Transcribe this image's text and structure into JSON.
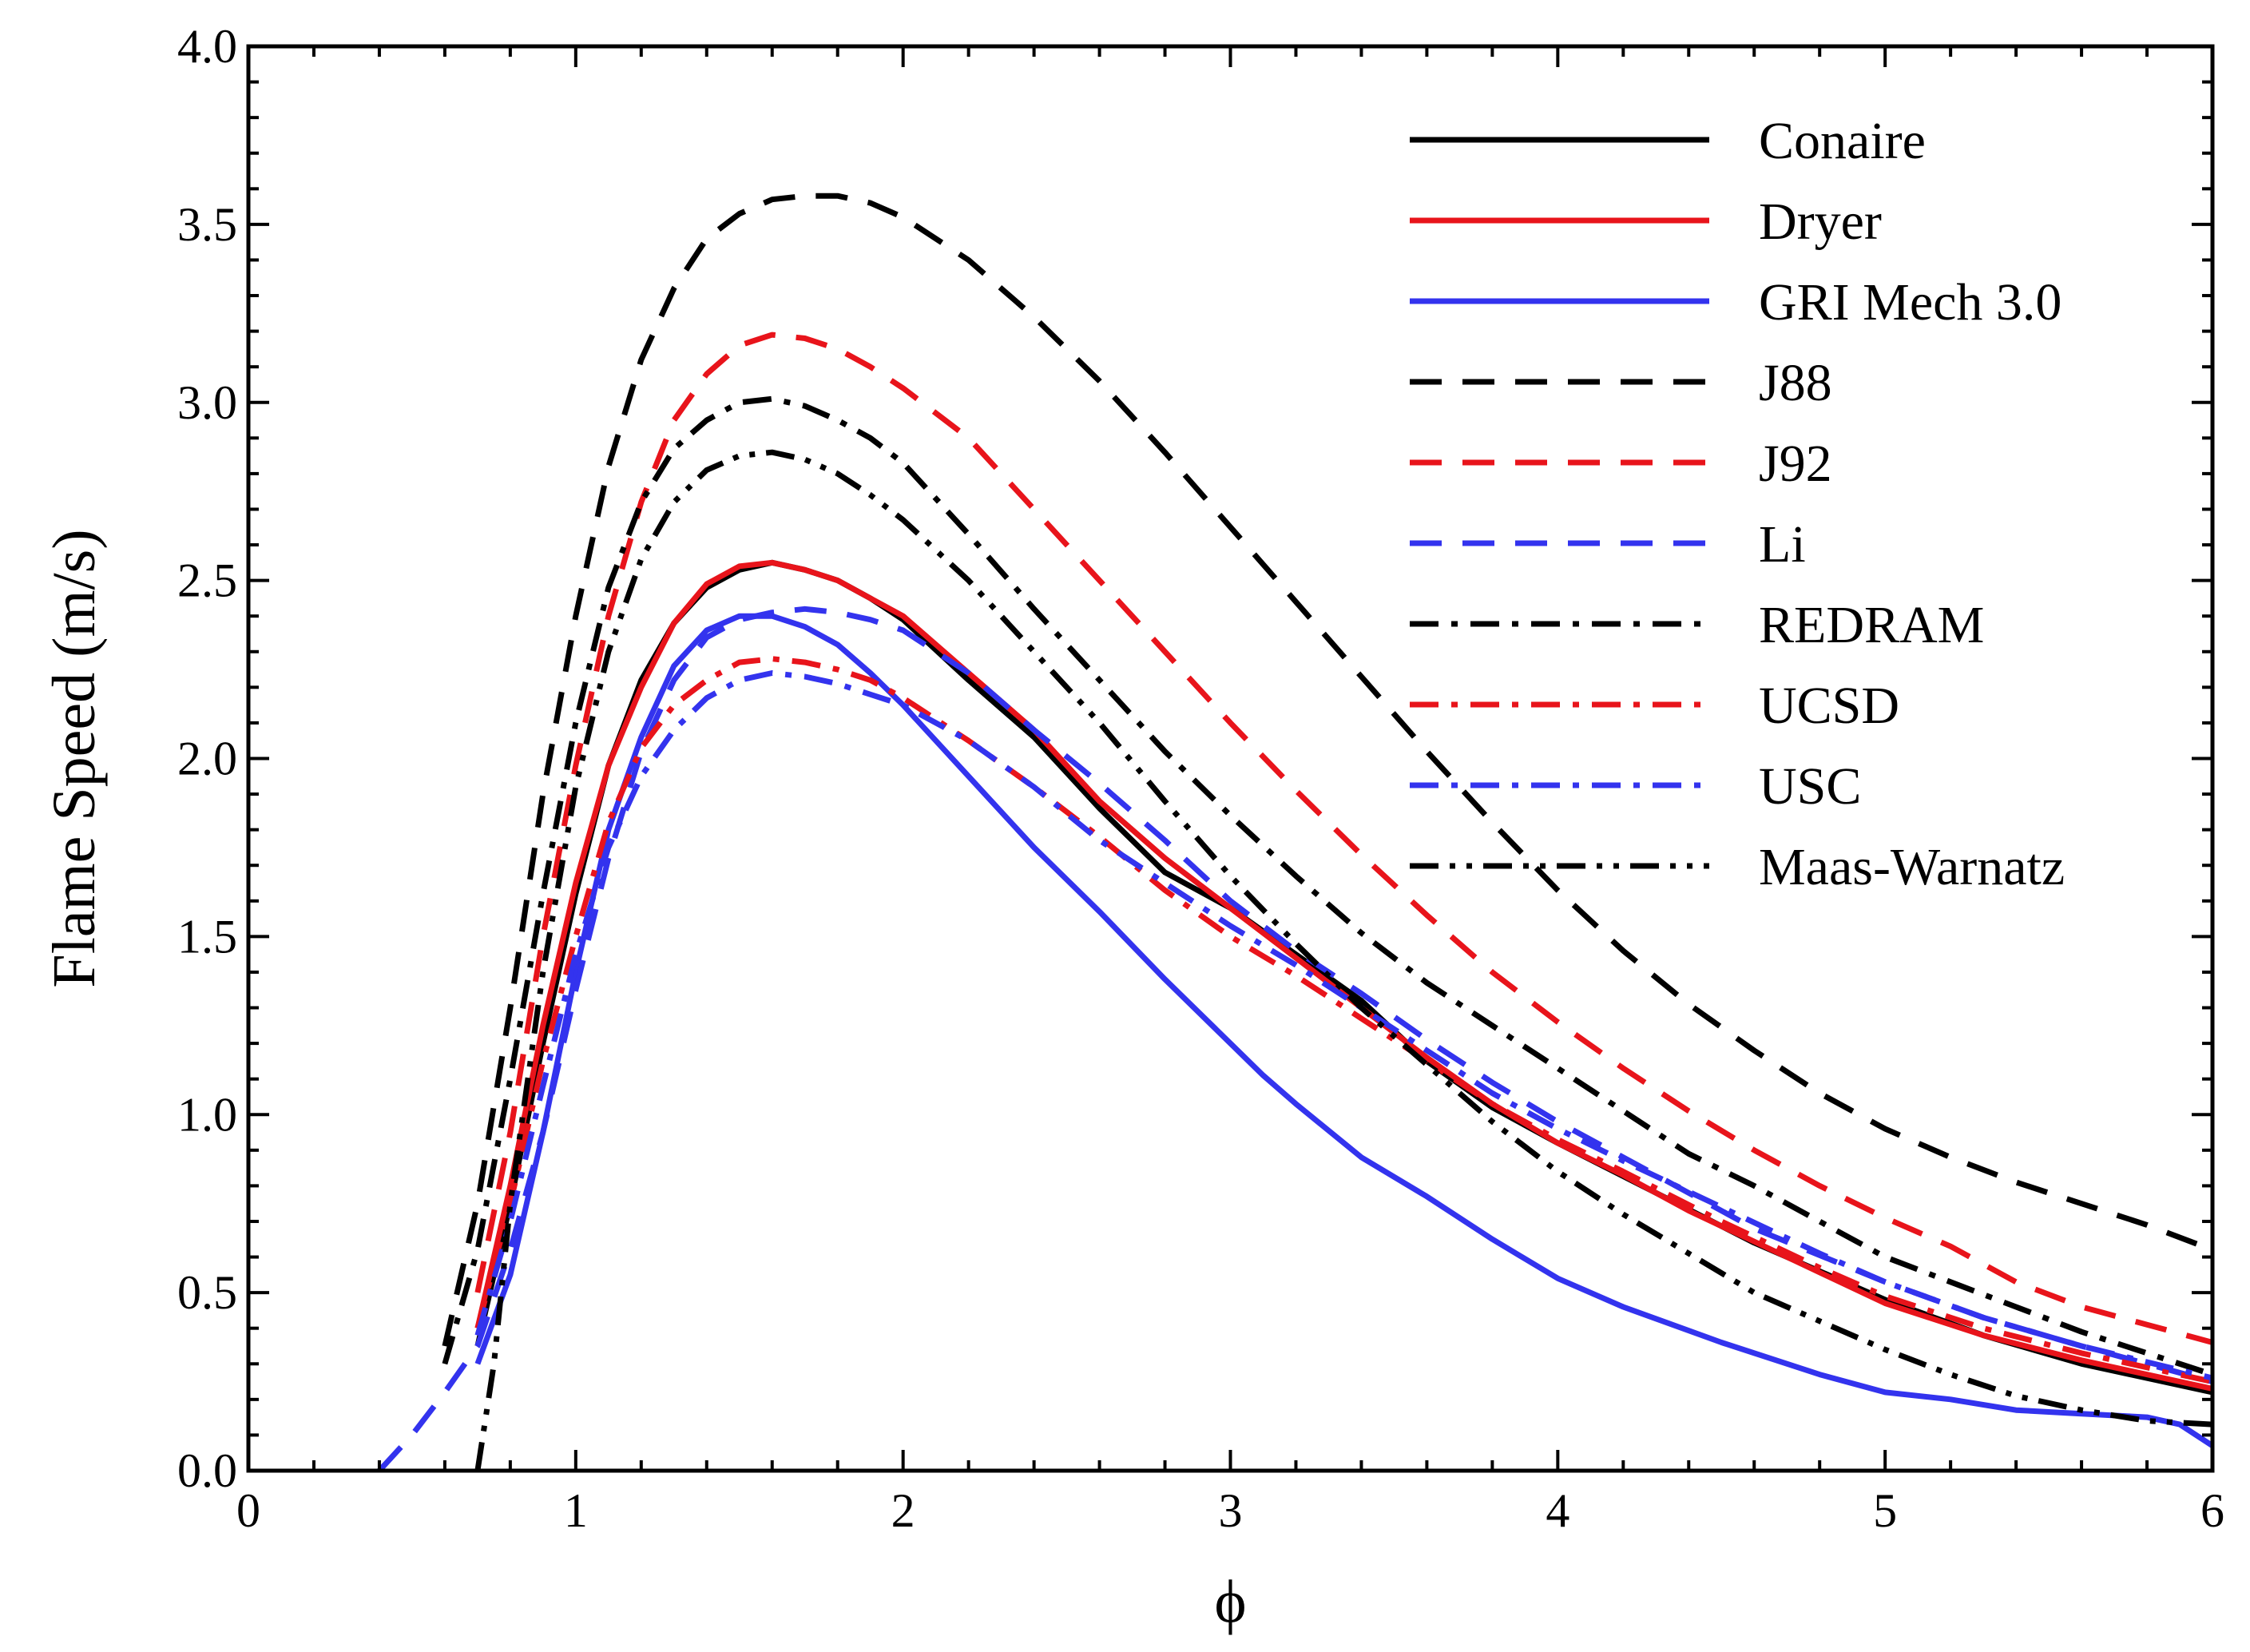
{
  "chart_data": {
    "type": "line",
    "title": "",
    "xlabel": "ϕ",
    "ylabel": "Flame Speed (m/s)",
    "xlim": [
      0,
      6
    ],
    "ylim": [
      0,
      4
    ],
    "x_ticks": [
      0,
      1,
      2,
      3,
      4,
      5,
      6
    ],
    "x_tick_labels": [
      "0",
      "1",
      "2",
      "3",
      "4",
      "5",
      "6"
    ],
    "y_ticks": [
      0,
      0.5,
      1,
      1.5,
      2,
      2.5,
      3,
      3.5,
      4
    ],
    "y_tick_labels": [
      "0.0",
      "0.5",
      "1.0",
      "1.5",
      "2.0",
      "2.5",
      "3.0",
      "3.5",
      "4.0"
    ],
    "grid": false,
    "legend_position": "top-right",
    "series": [
      {
        "name": "Conaire",
        "color": "#000000",
        "style": "solid",
        "x": [
          0.7,
          0.8,
          0.9,
          1.0,
          1.1,
          1.2,
          1.3,
          1.4,
          1.5,
          1.6,
          1.7,
          1.8,
          1.9,
          2.0,
          2.2,
          2.4,
          2.6,
          2.8,
          3.0,
          3.2,
          3.4,
          3.6,
          3.8,
          4.0,
          4.3,
          4.6,
          5.0,
          5.3,
          5.6,
          6.0
        ],
        "y": [
          0.35,
          0.75,
          1.2,
          1.62,
          1.98,
          2.22,
          2.38,
          2.48,
          2.53,
          2.55,
          2.53,
          2.5,
          2.45,
          2.39,
          2.22,
          2.06,
          1.86,
          1.68,
          1.58,
          1.45,
          1.32,
          1.15,
          1.02,
          0.92,
          0.78,
          0.64,
          0.48,
          0.38,
          0.3,
          0.22
        ]
      },
      {
        "name": "Dryer",
        "color": "#e8141b",
        "style": "solid",
        "x": [
          0.7,
          0.8,
          0.9,
          1.0,
          1.1,
          1.2,
          1.3,
          1.4,
          1.5,
          1.6,
          1.7,
          1.8,
          1.9,
          2.0,
          2.2,
          2.4,
          2.6,
          2.8,
          3.0,
          3.2,
          3.4,
          3.6,
          3.8,
          4.0,
          4.2,
          4.4,
          4.7,
          5.0,
          5.3,
          5.6,
          6.0
        ],
        "y": [
          0.4,
          0.8,
          1.25,
          1.65,
          1.98,
          2.2,
          2.38,
          2.49,
          2.54,
          2.55,
          2.53,
          2.5,
          2.45,
          2.4,
          2.24,
          2.08,
          1.88,
          1.72,
          1.58,
          1.44,
          1.3,
          1.16,
          1.03,
          0.92,
          0.83,
          0.73,
          0.6,
          0.47,
          0.38,
          0.31,
          0.23
        ]
      },
      {
        "name": "GRI Mech 3.0",
        "color": "#3333ee",
        "style": "solid",
        "x": [
          0.7,
          0.8,
          0.9,
          1.0,
          1.1,
          1.2,
          1.3,
          1.4,
          1.5,
          1.6,
          1.7,
          1.8,
          1.9,
          2.0,
          2.2,
          2.4,
          2.6,
          2.8,
          3.0,
          3.1,
          3.2,
          3.4,
          3.6,
          3.8,
          4.0,
          4.2,
          4.5,
          4.8,
          5.0,
          5.2,
          5.4,
          5.6,
          5.8,
          5.9,
          6.0
        ],
        "y": [
          0.3,
          0.55,
          0.95,
          1.4,
          1.8,
          2.06,
          2.26,
          2.36,
          2.4,
          2.4,
          2.37,
          2.32,
          2.24,
          2.15,
          1.95,
          1.75,
          1.57,
          1.38,
          1.2,
          1.11,
          1.03,
          0.88,
          0.77,
          0.65,
          0.54,
          0.46,
          0.36,
          0.27,
          0.22,
          0.2,
          0.17,
          0.16,
          0.15,
          0.13,
          0.07
        ]
      },
      {
        "name": "J88",
        "color": "#000000",
        "style": "dash",
        "x": [
          0.6,
          0.7,
          0.8,
          0.9,
          1.0,
          1.1,
          1.2,
          1.3,
          1.4,
          1.5,
          1.6,
          1.7,
          1.8,
          1.9,
          2.0,
          2.2,
          2.4,
          2.6,
          2.8,
          3.0,
          3.2,
          3.4,
          3.6,
          3.8,
          4.0,
          4.2,
          4.4,
          4.6,
          4.8,
          5.0,
          5.2,
          5.4,
          5.6,
          5.8,
          6.0
        ],
        "y": [
          0.35,
          0.75,
          1.3,
          1.9,
          2.4,
          2.82,
          3.12,
          3.32,
          3.46,
          3.53,
          3.57,
          3.58,
          3.58,
          3.56,
          3.52,
          3.4,
          3.24,
          3.06,
          2.86,
          2.65,
          2.44,
          2.23,
          2.02,
          1.82,
          1.63,
          1.46,
          1.31,
          1.18,
          1.06,
          0.96,
          0.88,
          0.81,
          0.75,
          0.69,
          0.62
        ]
      },
      {
        "name": "J92",
        "color": "#e8141b",
        "style": "dash",
        "x": [
          0.7,
          0.8,
          0.9,
          1.0,
          1.1,
          1.2,
          1.3,
          1.4,
          1.5,
          1.6,
          1.7,
          1.8,
          1.9,
          2.0,
          2.2,
          2.4,
          2.6,
          2.8,
          3.0,
          3.2,
          3.4,
          3.6,
          3.8,
          4.0,
          4.2,
          4.4,
          4.6,
          4.8,
          5.0,
          5.2,
          5.4,
          5.6,
          5.8,
          6.0
        ],
        "y": [
          0.5,
          0.95,
          1.5,
          1.98,
          2.4,
          2.72,
          2.95,
          3.08,
          3.16,
          3.19,
          3.18,
          3.15,
          3.1,
          3.04,
          2.9,
          2.7,
          2.5,
          2.3,
          2.1,
          1.91,
          1.73,
          1.56,
          1.4,
          1.26,
          1.13,
          1.01,
          0.9,
          0.8,
          0.71,
          0.63,
          0.53,
          0.46,
          0.41,
          0.36
        ]
      },
      {
        "name": "Li",
        "color": "#3333ee",
        "style": "dash",
        "x": [
          0.4,
          0.5,
          0.6,
          0.7,
          0.8,
          0.9,
          1.0,
          1.1,
          1.2,
          1.3,
          1.4,
          1.5,
          1.6,
          1.7,
          1.8,
          1.9,
          2.0,
          2.2,
          2.4,
          2.6,
          2.8,
          3.0,
          3.2,
          3.4,
          3.6,
          3.8,
          4.0,
          4.3,
          4.6,
          5.0,
          5.3,
          5.6,
          6.0
        ],
        "y": [
          0.0,
          0.1,
          0.22,
          0.35,
          0.62,
          0.95,
          1.35,
          1.72,
          2.02,
          2.22,
          2.34,
          2.39,
          2.41,
          2.42,
          2.41,
          2.39,
          2.36,
          2.24,
          2.08,
          1.93,
          1.77,
          1.6,
          1.46,
          1.34,
          1.21,
          1.09,
          0.98,
          0.83,
          0.68,
          0.53,
          0.43,
          0.35,
          0.25
        ]
      },
      {
        "name": "REDRAM",
        "color": "#000000",
        "style": "dashdot",
        "x": [
          0.6,
          0.7,
          0.8,
          0.9,
          1.0,
          1.1,
          1.2,
          1.3,
          1.4,
          1.5,
          1.6,
          1.7,
          1.8,
          1.9,
          2.0,
          2.2,
          2.4,
          2.6,
          2.8,
          3.0,
          3.2,
          3.4,
          3.6,
          3.8,
          4.0,
          4.2,
          4.4,
          4.6,
          4.8,
          5.0,
          5.2,
          5.4,
          5.6,
          5.8,
          6.0
        ],
        "y": [
          0.3,
          0.62,
          1.1,
          1.62,
          2.1,
          2.48,
          2.72,
          2.87,
          2.95,
          3.0,
          3.01,
          2.99,
          2.95,
          2.9,
          2.83,
          2.63,
          2.42,
          2.22,
          2.02,
          1.84,
          1.67,
          1.51,
          1.37,
          1.25,
          1.13,
          1.01,
          0.89,
          0.8,
          0.7,
          0.6,
          0.53,
          0.46,
          0.39,
          0.33,
          0.27
        ]
      },
      {
        "name": "UCSD",
        "color": "#e8141b",
        "style": "dashdot",
        "x": [
          0.7,
          0.8,
          0.9,
          1.0,
          1.1,
          1.2,
          1.3,
          1.4,
          1.5,
          1.6,
          1.7,
          1.8,
          1.9,
          2.0,
          2.2,
          2.4,
          2.6,
          2.8,
          3.0,
          3.2,
          3.4,
          3.6,
          3.8,
          4.0,
          4.2,
          4.5,
          4.8,
          5.0,
          5.3,
          5.6,
          6.0
        ],
        "y": [
          0.4,
          0.75,
          1.15,
          1.5,
          1.82,
          2.03,
          2.15,
          2.22,
          2.27,
          2.28,
          2.27,
          2.25,
          2.22,
          2.17,
          2.05,
          1.92,
          1.78,
          1.63,
          1.5,
          1.39,
          1.27,
          1.15,
          1.03,
          0.93,
          0.84,
          0.7,
          0.57,
          0.49,
          0.4,
          0.33,
          0.25
        ]
      },
      {
        "name": "USC",
        "color": "#3333ee",
        "style": "dashdot",
        "x": [
          0.7,
          0.8,
          0.9,
          1.0,
          1.1,
          1.2,
          1.3,
          1.4,
          1.5,
          1.6,
          1.7,
          1.8,
          1.9,
          2.0,
          2.2,
          2.4,
          2.6,
          2.8,
          3.0,
          3.2,
          3.4,
          3.6,
          3.8,
          4.0,
          4.2,
          4.5,
          4.8,
          5.0,
          5.3,
          5.6,
          6.0
        ],
        "y": [
          0.38,
          0.7,
          1.08,
          1.45,
          1.75,
          1.95,
          2.08,
          2.17,
          2.22,
          2.24,
          2.23,
          2.21,
          2.18,
          2.15,
          2.05,
          1.92,
          1.77,
          1.65,
          1.53,
          1.42,
          1.3,
          1.18,
          1.06,
          0.96,
          0.87,
          0.74,
          0.61,
          0.53,
          0.43,
          0.35,
          0.26
        ]
      },
      {
        "name": "Maas-Warnatz",
        "color": "#000000",
        "style": "dashdotdot",
        "x": [
          0.7,
          0.75,
          0.8,
          0.9,
          1.0,
          1.1,
          1.2,
          1.3,
          1.4,
          1.5,
          1.6,
          1.7,
          1.8,
          1.9,
          2.0,
          2.2,
          2.4,
          2.6,
          2.8,
          3.0,
          3.2,
          3.4,
          3.6,
          3.8,
          4.0,
          4.2,
          4.4,
          4.6,
          4.8,
          5.0,
          5.2,
          5.4,
          5.6,
          5.8,
          6.0
        ],
        "y": [
          0.0,
          0.3,
          0.75,
          1.4,
          1.92,
          2.3,
          2.56,
          2.72,
          2.81,
          2.85,
          2.86,
          2.84,
          2.8,
          2.74,
          2.67,
          2.5,
          2.3,
          2.1,
          1.88,
          1.67,
          1.48,
          1.3,
          1.14,
          0.98,
          0.84,
          0.72,
          0.61,
          0.5,
          0.42,
          0.34,
          0.27,
          0.21,
          0.17,
          0.14,
          0.13
        ]
      }
    ]
  }
}
